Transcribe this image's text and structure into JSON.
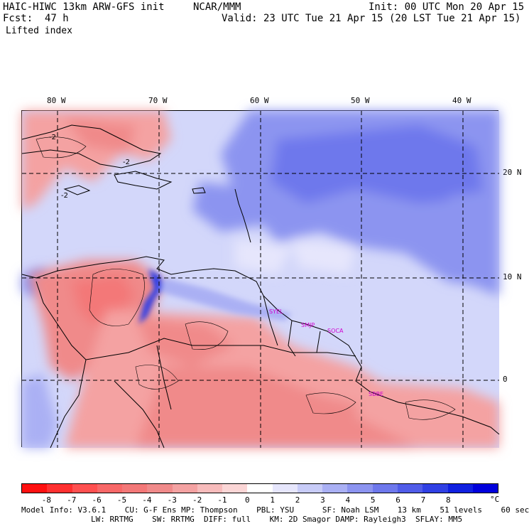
{
  "header": {
    "model_title": "HAIC-HIWC 13km ARW-GFS init",
    "org": "NCAR/MMM",
    "init": "Init: 00 UTC Mon 20 Apr 15",
    "fcst": "Fcst:  47 h",
    "valid": "Valid: 23 UTC Tue 21 Apr 15 (20 LST Tue 21 Apr 15)",
    "field": "Lifted index"
  },
  "map": {
    "longitude_labels": [
      "80 W",
      "70 W",
      "60 W",
      "50 W",
      "40 W"
    ],
    "latitude_labels": [
      "20 N",
      "10 N",
      "0"
    ],
    "contour_labels": [
      "-2",
      "-2",
      "-2"
    ],
    "stations": [
      "SYEL",
      "SMJP",
      "SOCA",
      "SBBE"
    ]
  },
  "colorbar": {
    "ticks": [
      "-8",
      "-7",
      "-6",
      "-5",
      "-4",
      "-3",
      "-2",
      "-1",
      "0",
      "1",
      "2",
      "3",
      "4",
      "5",
      "6",
      "7",
      "8"
    ],
    "unit": "°C",
    "colors": [
      "#ff1010",
      "#ff3030",
      "#ff5050",
      "#f86868",
      "#f37878",
      "#f08a8a",
      "#f4a2a2",
      "#f8bcbc",
      "#fbd6d6",
      "#ffffff",
      "#e6e6fc",
      "#c8ccf8",
      "#aab0f4",
      "#8c94f0",
      "#6e78ec",
      "#505ce8",
      "#3040e4",
      "#1020e0",
      "#0000dc"
    ]
  },
  "footer": {
    "line1": "Model Info: V3.6.1    CU: G-F Ens MP: Thompson    PBL: YSU      SF: Noah LSM    13 km    51 levels    60 sec",
    "line2": "LW: RRTMG    SW: RRTMG  DIFF: full    KM: 2D Smagor DAMP: Rayleigh3  SFLAY: MM5"
  }
}
